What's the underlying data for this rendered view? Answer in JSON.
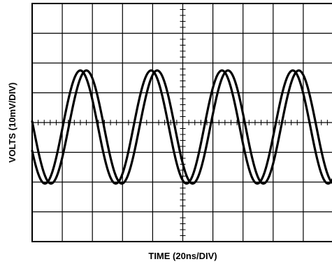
{
  "chart_data": {
    "type": "line",
    "title": "",
    "xlabel": "TIME (20ns/DIV)",
    "ylabel": "VOLTS (10mV/DIV)",
    "x_unit": "ns",
    "y_unit": "mV",
    "xlim": [
      0,
      200
    ],
    "ylim": [
      -40,
      40
    ],
    "x_divisions": 10,
    "y_divisions": 8,
    "grid": true,
    "series": [
      {
        "waveform": "sine",
        "period": 47,
        "amplitude": 19,
        "offset": -1.5,
        "peak_at": 32,
        "x": [
          0,
          20,
          40,
          60,
          80,
          100,
          120,
          140,
          160,
          180,
          200
        ],
        "values": [
          -3.5,
          -4.9,
          14.6,
          -20.4,
          13.2,
          4.2,
          -16.4,
          15.8,
          -4.3,
          -4.2,
          14.3
        ]
      },
      {
        "waveform": "sine",
        "period": 47,
        "amplitude": 19,
        "offset": -1.5,
        "peak_at": 36,
        "x": [
          0,
          20,
          40,
          60,
          80,
          100,
          120,
          140,
          160,
          180,
          200
        ],
        "values": [
          4.1,
          -11.4,
          15.9,
          -19.1,
          8.7,
          9.2,
          -19.1,
          12.2,
          2.6,
          -10.8,
          16.1
        ]
      }
    ]
  }
}
